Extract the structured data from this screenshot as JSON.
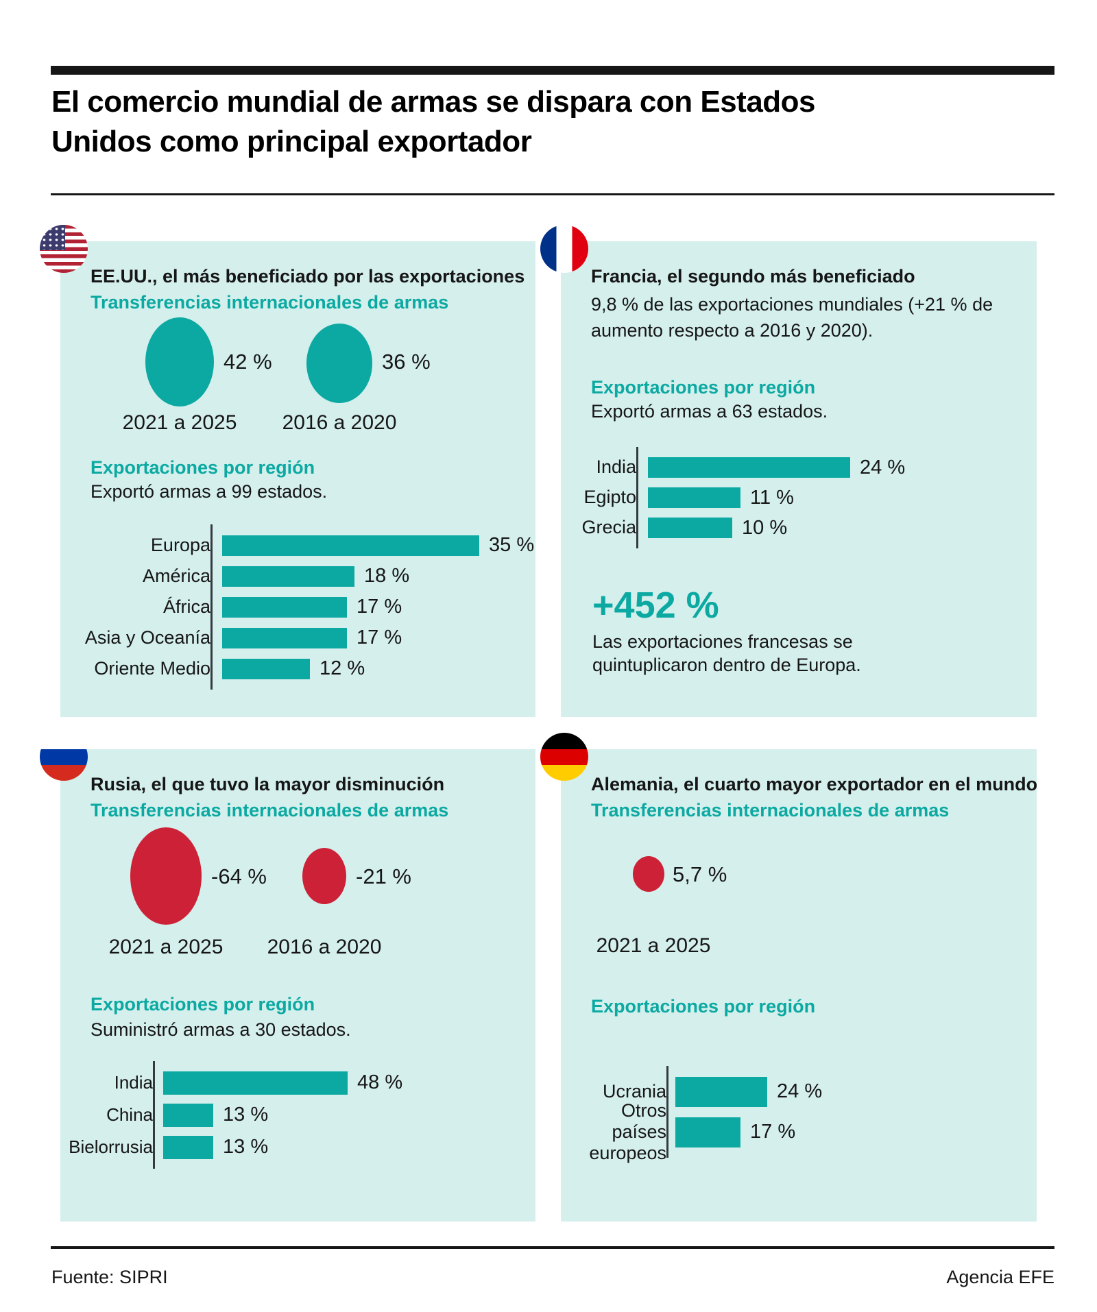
{
  "header": {
    "title_lines": [
      "El comercio mundial de armas se dispara con Estados",
      "Unidos como principal exportador"
    ]
  },
  "colors": {
    "accent": "#0ca9a2",
    "negative": "#cd2137",
    "panel_bg": "#d4efec",
    "text": "#161616"
  },
  "panels": {
    "usa": {
      "title": "EE.UU., el más beneficiado por las exportaciones",
      "subtitle": "Transferencias internacionales de armas",
      "circles": [
        {
          "value_label": "42 %",
          "value_pct": 42,
          "period": "2021 a 2025"
        },
        {
          "value_label": "36 %",
          "value_pct": 36,
          "period": "2016 a 2020"
        }
      ],
      "section_title": "Exportaciones por región",
      "section_note": "Exportó armas a 99 estados."
    },
    "france": {
      "title": "Francia, el segundo más beneficiado",
      "intro": "9,8 % de las exportaciones mundiales (+21 % de aumento respecto a 2016 y 2020).",
      "section_title": "Exportaciones por región",
      "section_note": "Exportó armas a 63 estados.",
      "highlight_value": "+452 %",
      "highlight_note": "Las exportaciones francesas se quintuplicaron dentro de Europa."
    },
    "russia": {
      "title": "Rusia, el que tuvo la mayor disminución",
      "subtitle": "Transferencias internacionales de armas",
      "circles": [
        {
          "value_label": "-64 %",
          "value_pct": -64,
          "period": "2021 a 2025"
        },
        {
          "value_label": "-21 %",
          "value_pct": -21,
          "period": "2016 a 2020"
        }
      ],
      "section_title": "Exportaciones por región",
      "section_note": "Suministró armas a 30 estados."
    },
    "germany": {
      "title": "Alemania, el cuarto mayor exportador en el mundo",
      "subtitle": "Transferencias internacionales de armas",
      "circles": [
        {
          "value_label": "5,7 %",
          "value_pct": 5.7,
          "period": "2021 a 2025"
        }
      ],
      "section_title": "Exportaciones por región"
    }
  },
  "chart_data": [
    {
      "type": "bar",
      "panel": "EE.UU.",
      "title": "Exportaciones por región",
      "unit": "%",
      "categories": [
        "Europa",
        "América",
        "África",
        "Asia y Oceanía",
        "Oriente Medio"
      ],
      "values": [
        35,
        18,
        17,
        17,
        12
      ],
      "value_labels": [
        "35 %",
        "18 %",
        "17 %",
        "17 %",
        "12 %"
      ],
      "share_of_world_exports": [
        {
          "period": "2021 a 2025",
          "value_pct": 42
        },
        {
          "period": "2016 a 2020",
          "value_pct": 36
        }
      ]
    },
    {
      "type": "bar",
      "panel": "Francia",
      "title": "Exportaciones por región",
      "unit": "%",
      "categories": [
        "India",
        "Egipto",
        "Grecia"
      ],
      "values": [
        24,
        11,
        10
      ],
      "value_labels": [
        "24 %",
        "11 %",
        "10 %"
      ],
      "share_of_world_exports_pct": 9.8,
      "change_vs_2016_2020_pct": 21,
      "exports_within_europe_change_pct": 452
    },
    {
      "type": "bar",
      "panel": "Rusia",
      "title": "Exportaciones por región",
      "unit": "%",
      "categories": [
        "India",
        "China",
        "Bielorrusia"
      ],
      "values": [
        48,
        13,
        13
      ],
      "value_labels": [
        "48 %",
        "13 %",
        "13 %"
      ],
      "transfer_change": [
        {
          "period": "2021 a 2025",
          "value_pct": -64
        },
        {
          "period": "2016 a 2020",
          "value_pct": -21
        }
      ]
    },
    {
      "type": "bar",
      "panel": "Alemania",
      "title": "Exportaciones por región",
      "unit": "%",
      "categories": [
        "Ucrania",
        "Otros países europeos"
      ],
      "values": [
        24,
        17
      ],
      "value_labels": [
        "24 %",
        "17 %"
      ],
      "share_of_world_exports": [
        {
          "period": "2021 a 2025",
          "value_pct": 5.7
        }
      ]
    }
  ],
  "footer": {
    "source": "Fuente: SIPRI",
    "credit": "Agencia EFE"
  }
}
